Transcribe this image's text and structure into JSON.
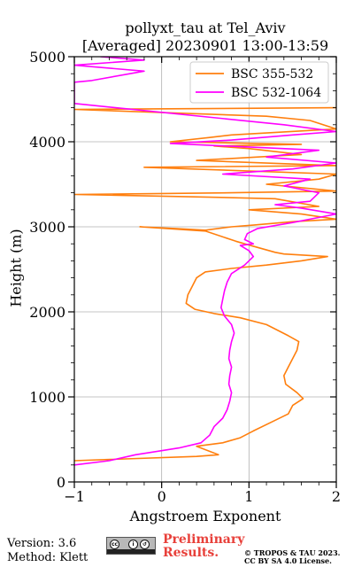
{
  "header": {
    "title_line1": "pollyxt_tau at Tel_Aviv",
    "title_line2": "[Averaged] 20230901 13:00-13:59"
  },
  "footer": {
    "version": "Version: 3.6",
    "method": "Method: Klett",
    "preliminary_line1": "Preliminary",
    "preliminary_line2": "Results.",
    "copyright_line1": "© TROPOS & TAU 2023.",
    "copyright_line2": "CC BY SA 4.0 License.",
    "license_badge": "cc-by-sa-icon"
  },
  "chart_data": {
    "type": "line",
    "xlabel": "Angstroem Exponent",
    "ylabel": "Height (m)",
    "xlim": [
      -1,
      2
    ],
    "ylim": [
      0,
      5000
    ],
    "xticks": [
      -1,
      0,
      1,
      2
    ],
    "xtick_labels": [
      "−1",
      "0",
      "1",
      "2"
    ],
    "yticks": [
      0,
      1000,
      2000,
      3000,
      4000,
      5000
    ],
    "ytick_labels": [
      "0",
      "1000",
      "2000",
      "3000",
      "4000",
      "5000"
    ],
    "grid": true,
    "legend_position": "top-right",
    "series": [
      {
        "name": "BSC 355-532",
        "color": "#ff7f0e",
        "points": [
          [
            -1.0,
            250
          ],
          [
            0.4,
            300
          ],
          [
            0.65,
            320
          ],
          [
            0.4,
            420
          ],
          [
            0.7,
            460
          ],
          [
            0.9,
            520
          ],
          [
            1.05,
            600
          ],
          [
            1.25,
            700
          ],
          [
            1.45,
            800
          ],
          [
            1.5,
            900
          ],
          [
            1.62,
            980
          ],
          [
            1.55,
            1050
          ],
          [
            1.42,
            1150
          ],
          [
            1.4,
            1250
          ],
          [
            1.45,
            1350
          ],
          [
            1.5,
            1450
          ],
          [
            1.55,
            1550
          ],
          [
            1.57,
            1650
          ],
          [
            1.45,
            1720
          ],
          [
            1.2,
            1850
          ],
          [
            0.9,
            1930
          ],
          [
            0.6,
            1980
          ],
          [
            0.38,
            2030
          ],
          [
            0.28,
            2100
          ],
          [
            0.3,
            2200
          ],
          [
            0.35,
            2300
          ],
          [
            0.4,
            2400
          ],
          [
            0.5,
            2470
          ],
          [
            0.8,
            2510
          ],
          [
            1.2,
            2550
          ],
          [
            1.6,
            2600
          ],
          [
            1.9,
            2650
          ],
          [
            1.4,
            2680
          ],
          [
            1.3,
            2700
          ],
          [
            0.95,
            2800
          ],
          [
            0.85,
            2830
          ],
          [
            0.5,
            2950
          ],
          [
            -0.25,
            3000
          ],
          [
            0.15,
            2980
          ],
          [
            0.5,
            2960
          ],
          [
            0.8,
            3000
          ],
          [
            1.05,
            3020
          ],
          [
            1.5,
            3060
          ],
          [
            2.0,
            3090
          ],
          [
            1.6,
            3150
          ],
          [
            1.0,
            3200
          ],
          [
            1.8,
            3240
          ],
          [
            1.3,
            3330
          ],
          [
            0.5,
            3350
          ],
          [
            -1.0,
            3380
          ],
          [
            0.8,
            3400
          ],
          [
            2.0,
            3420
          ],
          [
            1.2,
            3500
          ],
          [
            1.8,
            3560
          ],
          [
            2.0,
            3620
          ],
          [
            -0.2,
            3700
          ],
          [
            2.0,
            3720
          ],
          [
            0.4,
            3780
          ],
          [
            1.6,
            3850
          ],
          [
            1.0,
            3920
          ],
          [
            0.6,
            3950
          ],
          [
            1.6,
            3970
          ],
          [
            0.1,
            4000
          ],
          [
            0.55,
            4050
          ],
          [
            0.8,
            4080
          ],
          [
            2.0,
            4150
          ],
          [
            1.7,
            4250
          ],
          [
            1.2,
            4300
          ],
          [
            -1.0,
            4380
          ],
          [
            2.0,
            4400
          ]
        ]
      },
      {
        "name": "BSC 532-1064",
        "color": "#ff00ff",
        "points": [
          [
            -1.0,
            200
          ],
          [
            -0.6,
            250
          ],
          [
            -0.3,
            320
          ],
          [
            0.2,
            400
          ],
          [
            0.45,
            460
          ],
          [
            0.55,
            550
          ],
          [
            0.6,
            650
          ],
          [
            0.7,
            750
          ],
          [
            0.75,
            850
          ],
          [
            0.78,
            950
          ],
          [
            0.8,
            1050
          ],
          [
            0.77,
            1150
          ],
          [
            0.78,
            1250
          ],
          [
            0.8,
            1350
          ],
          [
            0.77,
            1450
          ],
          [
            0.78,
            1550
          ],
          [
            0.8,
            1650
          ],
          [
            0.83,
            1750
          ],
          [
            0.8,
            1850
          ],
          [
            0.72,
            1950
          ],
          [
            0.68,
            2050
          ],
          [
            0.7,
            2150
          ],
          [
            0.72,
            2250
          ],
          [
            0.75,
            2350
          ],
          [
            0.8,
            2450
          ],
          [
            0.95,
            2550
          ],
          [
            1.05,
            2650
          ],
          [
            1.0,
            2720
          ],
          [
            0.9,
            2780
          ],
          [
            1.05,
            2800
          ],
          [
            0.95,
            2850
          ],
          [
            0.98,
            2920
          ],
          [
            1.1,
            2980
          ],
          [
            1.5,
            3050
          ],
          [
            2.0,
            3150
          ],
          [
            1.6,
            3220
          ],
          [
            1.3,
            3260
          ],
          [
            1.7,
            3300
          ],
          [
            1.8,
            3400
          ],
          [
            1.4,
            3480
          ],
          [
            1.7,
            3560
          ],
          [
            0.7,
            3620
          ],
          [
            1.5,
            3680
          ],
          [
            2.0,
            3750
          ],
          [
            1.2,
            3820
          ],
          [
            1.8,
            3900
          ],
          [
            0.1,
            3980
          ],
          [
            0.8,
            4020
          ],
          [
            1.5,
            4080
          ],
          [
            2.0,
            4120
          ],
          [
            1.4,
            4200
          ],
          [
            -1.0,
            4450
          ],
          [
            -1.0,
            4700
          ],
          [
            -0.8,
            4720
          ],
          [
            -0.2,
            4830
          ],
          [
            -1.0,
            4900
          ],
          [
            -0.2,
            4960
          ],
          [
            -0.7,
            5000
          ]
        ]
      }
    ]
  }
}
